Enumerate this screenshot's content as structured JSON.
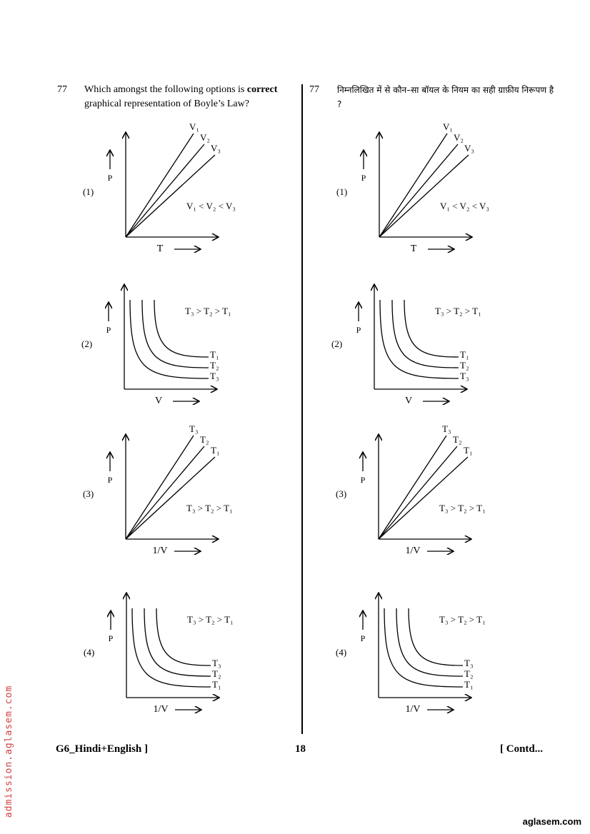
{
  "left": {
    "number": "77",
    "question": [
      "Which amongst the following options is ",
      "correct",
      " graphical representation of Boyle’s Law?"
    ],
    "options": [
      {
        "label": "(1)",
        "y_axis": "P",
        "x_axis": "T",
        "curves": [
          "V₁",
          "V₂",
          "V₃"
        ],
        "condition": "V₁ < V₂ < V₃"
      },
      {
        "label": "(2)",
        "y_axis": "P",
        "x_axis": "V",
        "curves": [
          "T₁",
          "T₂",
          "T₃"
        ],
        "condition": "T₃ > T₂ > T₁"
      },
      {
        "label": "(3)",
        "y_axis": "P",
        "x_axis": "1/V",
        "curves": [
          "T₃",
          "T₂",
          "T₁"
        ],
        "condition": "T₃ > T₂ > T₁"
      },
      {
        "label": "(4)",
        "y_axis": "P",
        "x_axis": "1/V",
        "curves": [
          "T₃",
          "T₂",
          "T₁"
        ],
        "condition": "T₃ > T₂ > T₁"
      }
    ]
  },
  "right": {
    "number": "77",
    "question": [
      "निम्नलिखित में से कौन–सा बॉयल के नियम का सही ग्राफ़ीय निरूपण है ?"
    ],
    "options": [
      {
        "label": "(1)",
        "y_axis": "P",
        "x_axis": "T",
        "curves": [
          "V₁",
          "V₂",
          "V₃"
        ],
        "condition": "V₁ < V₂ < V₃"
      },
      {
        "label": "(2)",
        "y_axis": "P",
        "x_axis": "V",
        "curves": [
          "T₁",
          "T₂",
          "T₃"
        ],
        "condition": "T₃ > T₂ > T₁"
      },
      {
        "label": "(3)",
        "y_axis": "P",
        "x_axis": "1/V",
        "curves": [
          "T₃",
          "T₂",
          "T₁"
        ],
        "condition": "T₃ > T₂ > T₁"
      },
      {
        "label": "(4)",
        "y_axis": "P",
        "x_axis": "1/V",
        "curves": [
          "T₃",
          "T₂",
          "T₁"
        ],
        "condition": "T₃ > T₂ > T₁"
      }
    ]
  },
  "footer": {
    "left": "G6_Hindi+English ]",
    "page": "18",
    "right": "[ Contd..."
  },
  "watermark": "admission.aglasem.com",
  "site": "aglasem.com"
}
